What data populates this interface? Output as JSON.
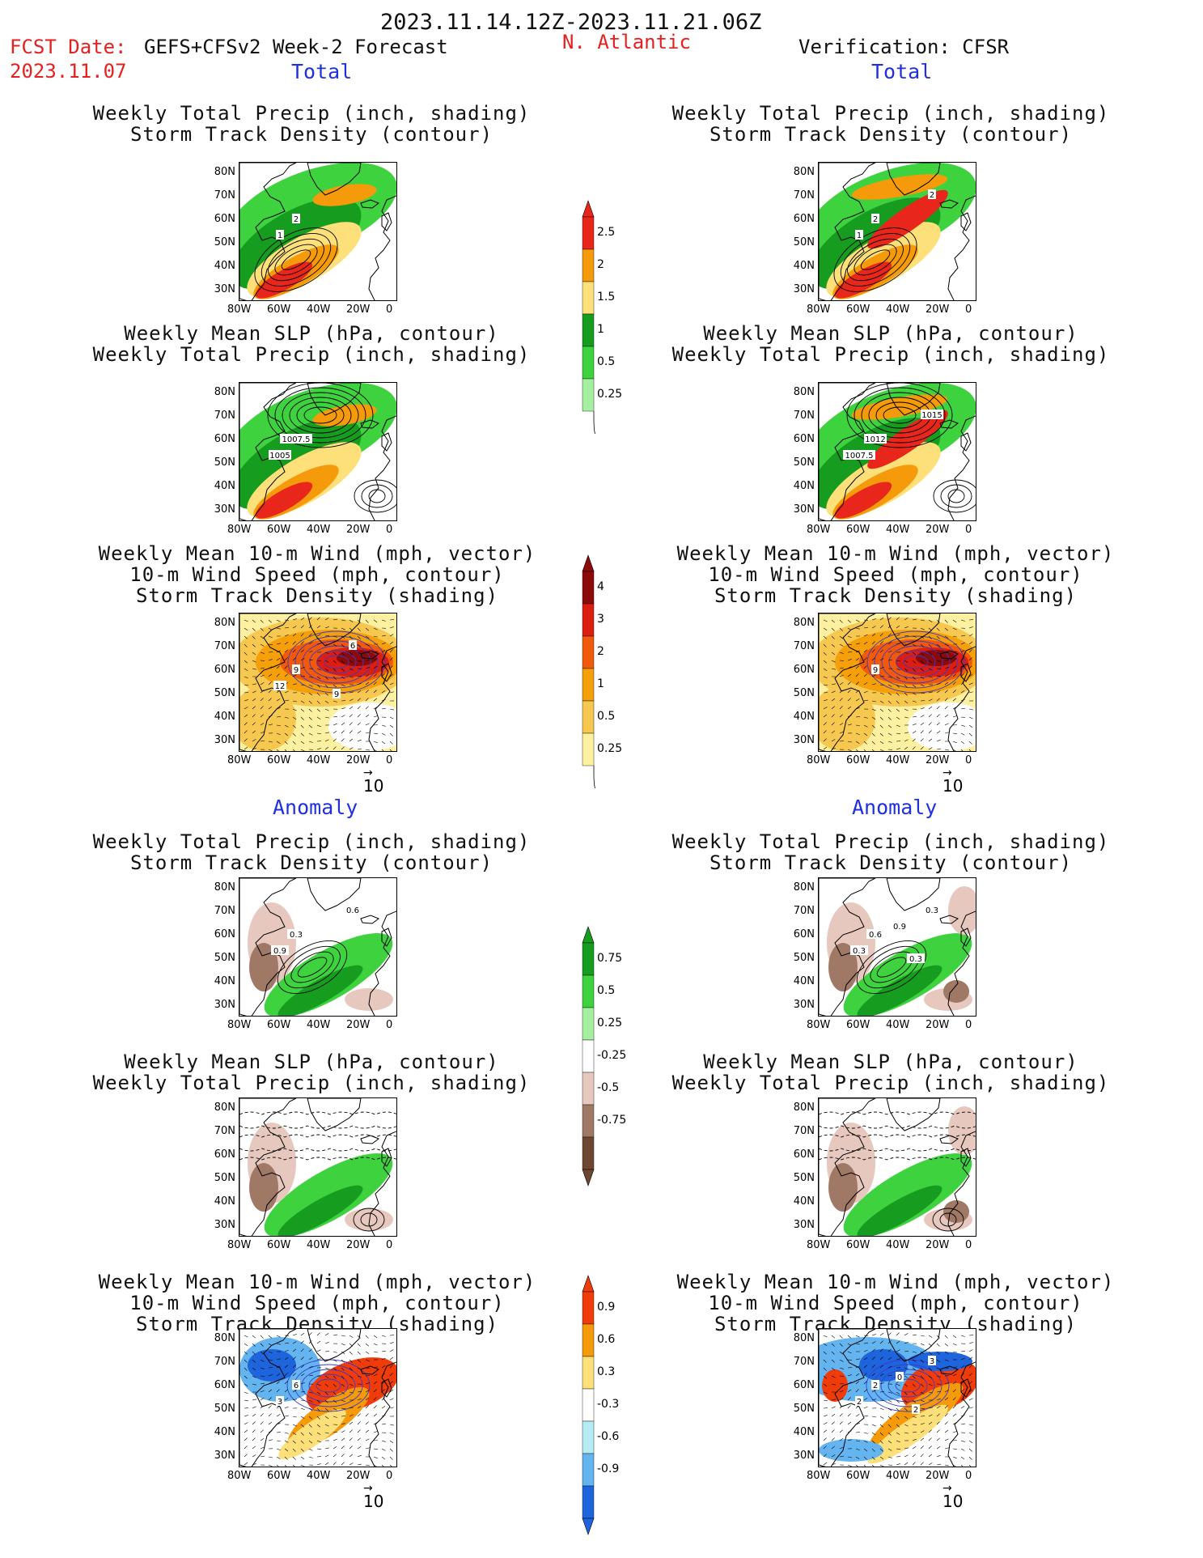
{
  "header": {
    "date_range": "2023.11.14.12Z-2023.11.21.06Z",
    "fcst_label": "FCST Date:",
    "fcst_model": "GEFS+CFSv2 Week-2 Forecast",
    "fcst_date": "2023.11.07",
    "region": "N. Atlantic",
    "verification": "Verification: CFSR"
  },
  "sections": {
    "total_left": "Total",
    "total_right": "Total",
    "anomaly_left": "Anomaly",
    "anomaly_right": "Anomaly"
  },
  "titles": {
    "precip_track_1": "Weekly Total Precip (inch, shading)",
    "precip_track_2": "Storm Track Density (contour)",
    "slp_1": "Weekly Mean SLP (hPa, contour)",
    "slp_2": "Weekly Total Precip (inch, shading)",
    "wind_1": "Weekly Mean 10-m Wind (mph, vector)",
    "wind_2": "10-m Wind Speed (mph, contour)",
    "wind_3": "Storm Track Density (shading)"
  },
  "axes": {
    "lat": [
      "80N",
      "70N",
      "60N",
      "50N",
      "40N",
      "30N"
    ],
    "lon": [
      "80W",
      "60W",
      "40W",
      "20W",
      "0"
    ]
  },
  "vector_ref": "10",
  "colorbars": {
    "precip_total": {
      "labels": [
        "2.5",
        "2",
        "1.5",
        "1",
        "0.5",
        "0.25"
      ],
      "colors": [
        "#e8261c",
        "#f59a0a",
        "#fde07a",
        "#169c1e",
        "#3fd23f",
        "#a5f0a0"
      ]
    },
    "track_total": {
      "labels": [
        "4",
        "3",
        "2",
        "1",
        "0.5",
        "0.25"
      ],
      "colors": [
        "#8c0a0a",
        "#dc1e12",
        "#f05a0a",
        "#f5a00a",
        "#f7c850",
        "#fdf0a0"
      ]
    },
    "precip_anom": {
      "labels": [
        "0.75",
        "0.5",
        "0.25",
        "-0.25",
        "-0.5",
        "-0.75"
      ],
      "colors": [
        "#169c1e",
        "#3fd23f",
        "#a5f0a0",
        "#ffffff",
        "#e6c8be",
        "#a07866",
        "#6e4632"
      ]
    },
    "track_anom": {
      "labels": [
        "0.9",
        "0.6",
        "0.3",
        "-0.3",
        "-0.6",
        "-0.9"
      ],
      "colors": [
        "#f03c0a",
        "#f59a0a",
        "#fde07a",
        "#ffffff",
        "#b4ebf5",
        "#64b4f0",
        "#1e64dc"
      ]
    }
  },
  "contour_labels": {
    "p1_left": [
      "2",
      "1"
    ],
    "p1_right": [
      "2",
      "1",
      "2"
    ],
    "p2_left": [
      "1007.5",
      "1005"
    ],
    "p2_right": [
      "1012",
      "1007.5",
      "1015"
    ],
    "p3_left": [
      "9",
      "12",
      "6",
      "9"
    ],
    "p3_right": [
      "9"
    ],
    "p4_left": [
      "0.3",
      "0.9",
      "0.6"
    ],
    "p4_right": [
      "0.6",
      "0.3",
      "0.3",
      "0.3",
      "0.9"
    ],
    "p6_left": [
      "6",
      "3"
    ],
    "p6_right": [
      "2",
      "2",
      "3",
      "2",
      "0"
    ]
  }
}
